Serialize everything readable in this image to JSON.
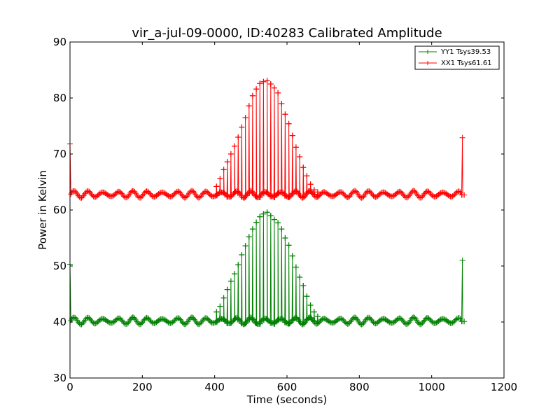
{
  "chart_data": {
    "type": "line",
    "title": "vir_a-jul-09-0000, ID:40283 Calibrated Amplitude",
    "xlabel": "Time (seconds)",
    "ylabel": "Power in Kelvin",
    "xlim": [
      0,
      1200
    ],
    "ylim": [
      30,
      90
    ],
    "xticks": [
      0,
      200,
      400,
      600,
      800,
      1000,
      1200
    ],
    "yticks": [
      30,
      40,
      50,
      60,
      70,
      80,
      90
    ],
    "grid": false,
    "legend_position": "top-right",
    "series": [
      {
        "name": "YY1 Tsys39.53",
        "color": "#008000",
        "baseline": 40.2,
        "ripple": 0.5,
        "start_spike": 50.3,
        "end_spike": 51.0,
        "end_time": 1085,
        "peaks": [
          {
            "x": 405,
            "y": 41.8
          },
          {
            "x": 415,
            "y": 42.8
          },
          {
            "x": 425,
            "y": 44.3
          },
          {
            "x": 435,
            "y": 45.8
          },
          {
            "x": 445,
            "y": 47.3
          },
          {
            "x": 455,
            "y": 48.6
          },
          {
            "x": 465,
            "y": 50.2
          },
          {
            "x": 475,
            "y": 52.0
          },
          {
            "x": 485,
            "y": 53.6
          },
          {
            "x": 495,
            "y": 55.2
          },
          {
            "x": 505,
            "y": 56.6
          },
          {
            "x": 515,
            "y": 57.8
          },
          {
            "x": 525,
            "y": 58.8
          },
          {
            "x": 535,
            "y": 59.3
          },
          {
            "x": 545,
            "y": 59.6
          },
          {
            "x": 555,
            "y": 59.0
          },
          {
            "x": 565,
            "y": 58.3
          },
          {
            "x": 575,
            "y": 57.7
          },
          {
            "x": 585,
            "y": 56.6
          },
          {
            "x": 595,
            "y": 55.0
          },
          {
            "x": 605,
            "y": 53.7
          },
          {
            "x": 615,
            "y": 51.8
          },
          {
            "x": 625,
            "y": 49.8
          },
          {
            "x": 635,
            "y": 48.0
          },
          {
            "x": 645,
            "y": 46.5
          },
          {
            "x": 655,
            "y": 44.6
          },
          {
            "x": 665,
            "y": 43.0
          },
          {
            "x": 675,
            "y": 41.8
          },
          {
            "x": 685,
            "y": 41.0
          }
        ]
      },
      {
        "name": "XX1 Tsys61.61",
        "color": "#ff0000",
        "baseline": 62.8,
        "ripple": 0.5,
        "start_spike": 71.8,
        "end_spike": 72.9,
        "end_time": 1085,
        "peaks": [
          {
            "x": 405,
            "y": 64.2
          },
          {
            "x": 415,
            "y": 65.6
          },
          {
            "x": 425,
            "y": 67.2
          },
          {
            "x": 435,
            "y": 68.6
          },
          {
            "x": 445,
            "y": 70.0
          },
          {
            "x": 455,
            "y": 71.4
          },
          {
            "x": 465,
            "y": 73.0
          },
          {
            "x": 475,
            "y": 74.8
          },
          {
            "x": 485,
            "y": 76.5
          },
          {
            "x": 495,
            "y": 78.6
          },
          {
            "x": 505,
            "y": 80.4
          },
          {
            "x": 515,
            "y": 81.6
          },
          {
            "x": 525,
            "y": 82.6
          },
          {
            "x": 535,
            "y": 82.9
          },
          {
            "x": 545,
            "y": 83.1
          },
          {
            "x": 555,
            "y": 82.5
          },
          {
            "x": 565,
            "y": 81.8
          },
          {
            "x": 575,
            "y": 80.9
          },
          {
            "x": 585,
            "y": 79.0
          },
          {
            "x": 595,
            "y": 77.1
          },
          {
            "x": 605,
            "y": 75.4
          },
          {
            "x": 615,
            "y": 73.3
          },
          {
            "x": 625,
            "y": 71.2
          },
          {
            "x": 635,
            "y": 69.5
          },
          {
            "x": 645,
            "y": 67.6
          },
          {
            "x": 655,
            "y": 66.1
          },
          {
            "x": 665,
            "y": 64.6
          },
          {
            "x": 675,
            "y": 63.6
          },
          {
            "x": 685,
            "y": 63.2
          }
        ]
      }
    ]
  }
}
